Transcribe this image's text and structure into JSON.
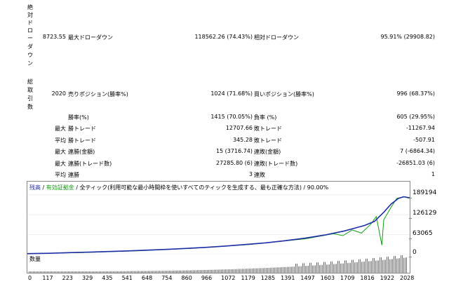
{
  "side_labels": {
    "drawdown": [
      "絶",
      "対",
      "ド",
      "ロ",
      "ー",
      "ダ",
      "ウ",
      "ン"
    ],
    "trades": [
      "総",
      "取",
      "引",
      "数"
    ]
  },
  "rows": [
    {
      "c1": "8723.55",
      "c2": "最大ドローダウン",
      "c3": "118562.26 (74.43%)",
      "c4": "相対ドローダウン",
      "c5": "95.91% (29908.82)"
    },
    {
      "c1": "2020",
      "c2": "売りポジション(勝率%)",
      "c3": "1024 (71.68%)",
      "c4": "買いポジション(勝率%)",
      "c5": "996 (68.37%)"
    },
    {
      "c1": "",
      "c2": "勝率(%)",
      "c3": "1415 (70.05%)",
      "c4": "負率 (%)",
      "c5": "605 (29.95%)"
    },
    {
      "c1": "最大",
      "c2": "勝トレード",
      "c3": "12707.66",
      "c4": "敗トレード",
      "c5": "-11267.94"
    },
    {
      "c1": "平均",
      "c2": "勝トレード",
      "c3": "345.28",
      "c4": "敗トレード",
      "c5": "-507.91"
    },
    {
      "c1": "最大",
      "c2": "連勝(金額)",
      "c3": "15 (3716.74)",
      "c4": "連敗(金額)",
      "c5": "7 (-6864.34)"
    },
    {
      "c1": "最大",
      "c2": "連勝(トレード数)",
      "c3": "27285.80 (6)",
      "c4": "連敗(トレード数)",
      "c5": "-26851.03 (6)"
    },
    {
      "c1": "平均",
      "c2": "連勝",
      "c3": "3",
      "c4": "連敗",
      "c5": "1"
    }
  ],
  "chart_header": {
    "balance": "残高",
    "sep1": " / ",
    "equity": "有効証拠金",
    "rest": " / 全ティック(利用可能な最小時間枠を使いすべてのティックを生成する、最も正確な方法) / 90.00%"
  },
  "volume_label": "数量",
  "colors": {
    "balance": "#1f2fa8",
    "equity": "#10a010",
    "volume": "#10b010",
    "header_balance": "#1f2fa8",
    "header_equity": "#10a010"
  },
  "chart_data": {
    "type": "line",
    "title": "",
    "x_tick_labels": [
      "0",
      "117",
      "223",
      "329",
      "435",
      "541",
      "648",
      "754",
      "860",
      "966",
      "1072",
      "1179",
      "1285",
      "1391",
      "1497",
      "1603",
      "1709",
      "1816",
      "1922",
      "2028"
    ],
    "y_tick_labels": [
      "189194",
      "126129",
      "63065",
      "0"
    ],
    "ylim": [
      0,
      200000
    ],
    "xlim": [
      0,
      2060
    ],
    "series": [
      {
        "name": "残高",
        "points": [
          [
            0,
            3000
          ],
          [
            117,
            4000
          ],
          [
            223,
            6000
          ],
          [
            329,
            7500
          ],
          [
            435,
            9500
          ],
          [
            541,
            11500
          ],
          [
            648,
            14000
          ],
          [
            754,
            16500
          ],
          [
            860,
            19500
          ],
          [
            966,
            23000
          ],
          [
            1072,
            27000
          ],
          [
            1179,
            32000
          ],
          [
            1285,
            37000
          ],
          [
            1391,
            44000
          ],
          [
            1497,
            52000
          ],
          [
            1603,
            62000
          ],
          [
            1709,
            75000
          ],
          [
            1816,
            92000
          ],
          [
            1870,
            105000
          ],
          [
            1922,
            135000
          ],
          [
            1960,
            160000
          ],
          [
            2000,
            178000
          ],
          [
            2028,
            183000
          ],
          [
            2060,
            180000
          ]
        ]
      },
      {
        "name": "有効証拠金",
        "points": [
          [
            0,
            3000
          ],
          [
            300,
            6500
          ],
          [
            600,
            12000
          ],
          [
            900,
            20000
          ],
          [
            1200,
            32000
          ],
          [
            1500,
            50000
          ],
          [
            1650,
            66000
          ],
          [
            1700,
            60000
          ],
          [
            1750,
            78000
          ],
          [
            1800,
            68000
          ],
          [
            1850,
            96000
          ],
          [
            1880,
            120000
          ],
          [
            1900,
            60000
          ],
          [
            1910,
            30000
          ],
          [
            1920,
            110000
          ],
          [
            1960,
            150000
          ],
          [
            1990,
            178000
          ],
          [
            2028,
            183000
          ],
          [
            2060,
            178000
          ]
        ]
      }
    ]
  }
}
